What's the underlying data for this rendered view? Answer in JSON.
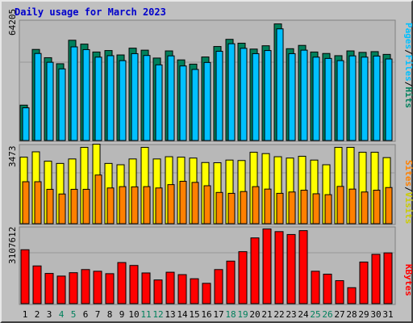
{
  "colors": {
    "hits": "#00805c",
    "files": "#00c0ff",
    "sites": "#ff8000",
    "visits": "#ffff00",
    "kbytes": "#ff0000",
    "title": "#0000cc",
    "weekend_day": "#00805c"
  },
  "chart_data": [
    {
      "type": "bar",
      "title": "Daily usage for March 2023",
      "categories": [
        "1",
        "2",
        "3",
        "4",
        "5",
        "6",
        "7",
        "8",
        "9",
        "10",
        "11",
        "12",
        "13",
        "14",
        "15",
        "16",
        "17",
        "18",
        "19",
        "20",
        "21",
        "22",
        "23",
        "24",
        "25",
        "26",
        "27",
        "28",
        "29",
        "30",
        "31"
      ],
      "weekend_days": [
        "4",
        "5",
        "11",
        "12",
        "18",
        "19",
        "25",
        "26"
      ],
      "ymax_label": "64205",
      "ylim": [
        0,
        64205
      ],
      "ylabel_parts": [
        "Pages",
        "Files",
        "Hits"
      ],
      "series": [
        {
          "name": "Hits",
          "values": [
            19258,
            49600,
            45100,
            41800,
            54600,
            52500,
            48200,
            49000,
            46600,
            50300,
            49200,
            44900,
            48800,
            43900,
            41600,
            45500,
            51200,
            55100,
            53000,
            49800,
            51600,
            63500,
            50000,
            51800,
            48200,
            47400,
            46200,
            48800,
            48000,
            48400,
            46900
          ]
        },
        {
          "name": "Files",
          "values": [
            17800,
            47400,
            42600,
            39000,
            51000,
            49500,
            45400,
            46200,
            43500,
            47300,
            46300,
            41200,
            46100,
            40600,
            38700,
            42500,
            48600,
            52700,
            50200,
            47300,
            49000,
            60800,
            47300,
            49200,
            45400,
            44700,
            43500,
            46100,
            45400,
            46000,
            44400
          ]
        },
        {
          "name": "Pages",
          "values": [
            null,
            null,
            null,
            null,
            null,
            null,
            null,
            null,
            null,
            null,
            null,
            null,
            null,
            null,
            null,
            null,
            null,
            null,
            null,
            null,
            null,
            null,
            null,
            null,
            null,
            null,
            null,
            null,
            null,
            null,
            null
          ]
        }
      ]
    },
    {
      "type": "bar",
      "ymax_label": "3473",
      "ylim": [
        0,
        3473
      ],
      "ylabel_parts": [
        "Sites",
        "Visits"
      ],
      "series": [
        {
          "name": "Visits",
          "values": [
            2980,
            3220,
            2800,
            2700,
            2900,
            3420,
            3560,
            2700,
            2640,
            2900,
            3420,
            2900,
            3000,
            2980,
            2940,
            2740,
            2730,
            2850,
            2830,
            3200,
            3140,
            3000,
            2940,
            3020,
            2850,
            2640,
            3420,
            3420,
            3200,
            3200,
            2960
          ]
        },
        {
          "name": "Sites",
          "values": [
            1880,
            1880,
            1540,
            1330,
            1540,
            1540,
            2180,
            1600,
            1660,
            1650,
            1660,
            1600,
            1750,
            1900,
            1850,
            1700,
            1400,
            1360,
            1440,
            1660,
            1550,
            1360,
            1420,
            1500,
            1340,
            1300,
            1670,
            1550,
            1420,
            1500,
            1620
          ]
        }
      ]
    },
    {
      "type": "bar",
      "ymax_label": "3107612",
      "ylim": [
        0,
        3107612
      ],
      "ylabel_parts": [
        "KBytes"
      ],
      "series": [
        {
          "name": "KBytes",
          "values": [
            2230000,
            1560000,
            1250000,
            1140000,
            1280000,
            1410000,
            1340000,
            1240000,
            1700000,
            1580000,
            1270000,
            980000,
            1300000,
            1200000,
            1030000,
            840000,
            1410000,
            1760000,
            2150000,
            2720000,
            3090000,
            2980000,
            2860000,
            3020000,
            1340000,
            1220000,
            950000,
            660000,
            1720000,
            2040000,
            2100000
          ]
        }
      ]
    }
  ]
}
